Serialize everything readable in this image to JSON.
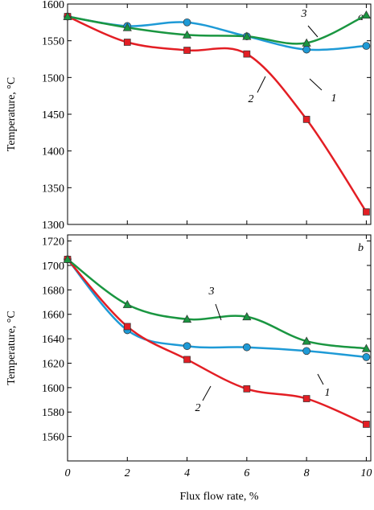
{
  "chart_data": [
    {
      "type": "line",
      "panel_label": "a",
      "y_label": "Temperature, °C",
      "x": [
        0,
        2,
        4,
        6,
        8,
        10
      ],
      "xlim": [
        0,
        10.15
      ],
      "xticks": [
        0,
        2,
        4,
        6,
        8,
        10
      ],
      "ylim": [
        1300,
        1600
      ],
      "yticks": [
        1300,
        1350,
        1400,
        1450,
        1500,
        1550,
        1600
      ],
      "series": [
        {
          "name": "1",
          "color": "#1e9ad6",
          "marker": "circle",
          "values": [
            1583,
            1570,
            1575,
            1556,
            1538,
            1543
          ]
        },
        {
          "name": "2",
          "color": "#e31e24",
          "marker": "square",
          "values": [
            1583,
            1548,
            1537,
            1532,
            1443,
            1317
          ]
        },
        {
          "name": "3",
          "color": "#1a9641",
          "marker": "triangle",
          "values": [
            1583,
            1568,
            1558,
            1556,
            1547,
            1585
          ]
        }
      ]
    },
    {
      "type": "line",
      "panel_label": "b",
      "y_label": "Temperature, °C",
      "x_label": "Flux flow rate, %",
      "x": [
        0,
        2,
        4,
        6,
        8,
        10
      ],
      "xlim": [
        0,
        10.15
      ],
      "xticks": [
        0,
        2,
        4,
        6,
        8,
        10
      ],
      "ylim": [
        1540,
        1725
      ],
      "yticks": [
        1560,
        1580,
        1600,
        1620,
        1640,
        1660,
        1680,
        1700,
        1720
      ],
      "series": [
        {
          "name": "1",
          "color": "#1e9ad6",
          "marker": "circle",
          "values": [
            1705,
            1647,
            1634,
            1633,
            1630,
            1625
          ]
        },
        {
          "name": "2",
          "color": "#e31e24",
          "marker": "square",
          "values": [
            1705,
            1650,
            1623,
            1599,
            1591,
            1570
          ]
        },
        {
          "name": "3",
          "color": "#1a9641",
          "marker": "triangle",
          "values": [
            1705,
            1668,
            1656,
            1658,
            1638,
            1632
          ]
        }
      ]
    }
  ]
}
